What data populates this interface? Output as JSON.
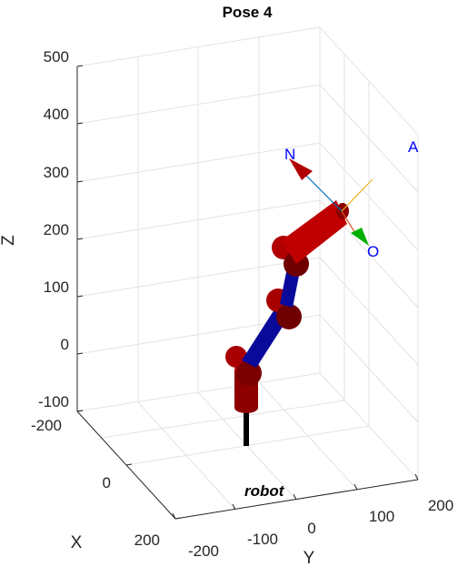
{
  "chart_data": {
    "type": "3d-robot-plot",
    "title": "Pose 4",
    "xlabel": "X",
    "ylabel": "Y",
    "zlabel": "Z",
    "x_ticks": [
      "-200",
      "0",
      "200"
    ],
    "y_ticks": [
      "-200",
      "-100",
      "0",
      "100",
      "200"
    ],
    "z_ticks": [
      "500",
      "400",
      "300",
      "200",
      "100",
      "0",
      "-100"
    ],
    "xlim": [
      -200,
      200
    ],
    "ylim": [
      -200,
      200
    ],
    "zlim": [
      -100,
      500
    ],
    "grid": true,
    "robot_name": "robot",
    "frame_labels": {
      "n": "N",
      "o": "O",
      "a": "A"
    },
    "colors": {
      "link": "#c00000",
      "link_dark": "#6e0000",
      "joint_link": "#0a0a9a",
      "base": "#000000",
      "n_vector": "#0072bd",
      "o_vector": "#00b000",
      "a_vector": "#edb120",
      "label": "#0000ff",
      "grid": "#e3e3e3",
      "axis": "#262626"
    }
  }
}
